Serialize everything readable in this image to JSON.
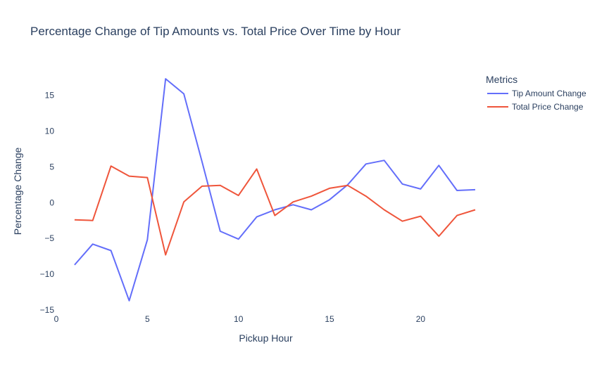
{
  "chart_data": {
    "type": "line",
    "title": "Percentage Change of Tip Amounts vs. Total Price Over Time by Hour",
    "xlabel": "Pickup Hour",
    "ylabel": "Percentage Change",
    "xlim": [
      0,
      23
    ],
    "ylim": [
      -15,
      18
    ],
    "xticks": [
      0,
      5,
      10,
      15,
      20
    ],
    "yticks": [
      -15,
      -10,
      -5,
      0,
      5,
      10,
      15
    ],
    "xtick_labels": [
      "0",
      "5",
      "10",
      "15",
      "20"
    ],
    "ytick_labels": [
      "−15",
      "−10",
      "−5",
      "0",
      "5",
      "10",
      "15"
    ],
    "grid": false,
    "legend_title": "Metrics",
    "legend_position": "top-right",
    "x": [
      1,
      2,
      3,
      4,
      5,
      6,
      7,
      8,
      9,
      10,
      11,
      12,
      13,
      14,
      15,
      16,
      17,
      18,
      19,
      20,
      21,
      22,
      23
    ],
    "series": [
      {
        "name": "Tip Amount Change",
        "color": "#636efa",
        "values": [
          -8.7,
          -5.8,
          -6.7,
          -13.7,
          -5.2,
          17.3,
          15.2,
          5.7,
          -4.0,
          -5.1,
          -2.0,
          -1.0,
          -0.3,
          -1.0,
          0.4,
          2.5,
          5.4,
          5.9,
          2.6,
          1.9,
          5.2,
          1.7,
          1.8
        ]
      },
      {
        "name": "Total Price Change",
        "color": "#ef553b",
        "values": [
          -2.4,
          -2.5,
          5.1,
          3.7,
          3.5,
          -7.3,
          0.1,
          2.3,
          2.4,
          1.0,
          4.7,
          -1.8,
          0.1,
          0.9,
          2.0,
          2.4,
          0.9,
          -1.0,
          -2.6,
          -1.9,
          -4.7,
          -1.8,
          -1.0
        ]
      }
    ]
  }
}
